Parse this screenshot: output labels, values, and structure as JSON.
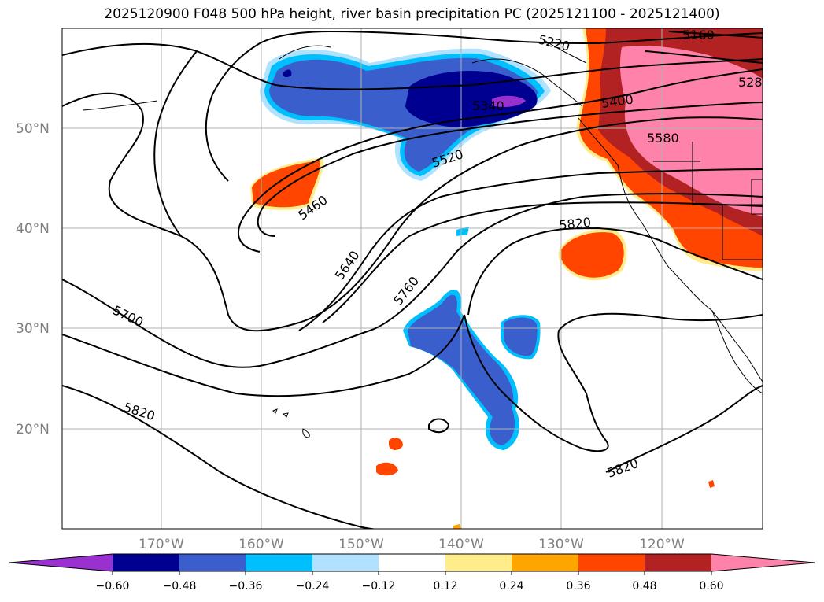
{
  "title": "2025120900 F048 500 hPa height, river basin precipitation PC (2025121100 - 2025121400)",
  "axes": {
    "lat_labels": [
      "50°N",
      "40°N",
      "30°N",
      "20°N"
    ],
    "lon_labels": [
      "170°W",
      "160°W",
      "150°W",
      "140°W",
      "130°W",
      "120°W"
    ]
  },
  "contour_labels": [
    "5220",
    "5160",
    "528",
    "5340",
    "5400",
    "5580",
    "5520",
    "5460",
    "5640",
    "5760",
    "5820",
    "5700",
    "5820",
    "5820"
  ],
  "colorbar": {
    "ticks": [
      "−0.60",
      "−0.48",
      "−0.36",
      "−0.24",
      "−0.12",
      "0.12",
      "0.24",
      "0.36",
      "0.48",
      "0.60"
    ],
    "colors": [
      "#9b30d0",
      "#000090",
      "#3a5fcd",
      "#00bfff",
      "#b0e2ff",
      "#ffffff",
      "#ffec8b",
      "#ffa500",
      "#ff4500",
      "#b22222",
      "#ff82ab"
    ]
  }
}
